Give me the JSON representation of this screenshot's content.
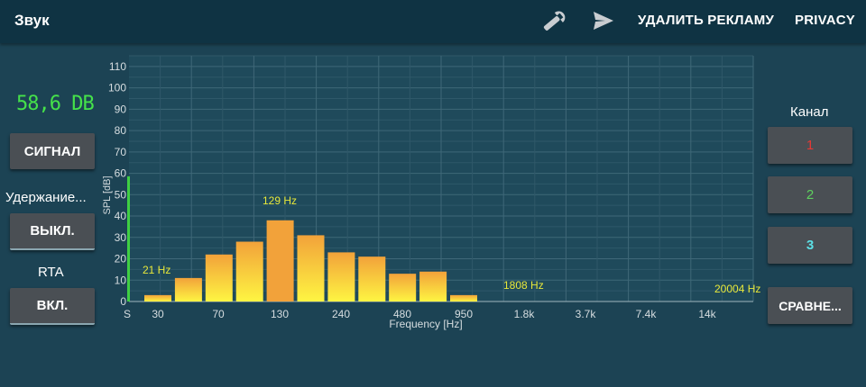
{
  "app": {
    "title": "Звук"
  },
  "toolbar": {
    "remove_ads": "УДАЛИТЬ РЕКЛАМУ",
    "privacy": "PRIVACY"
  },
  "left_panel": {
    "db_readout": "58,6 DB",
    "signal_button": "СИГНАЛ",
    "hold_label": "Удержание...",
    "hold_button": "ВЫКЛ.",
    "rta_label": "RTA",
    "rta_button": "ВКЛ."
  },
  "right_panel": {
    "channel_label": "Канал",
    "channels": [
      "1",
      "2",
      "3"
    ],
    "compare_button": "СРАВНЕ..."
  },
  "colors": {
    "background": "#1c4354",
    "topbar": "#0f3343",
    "accent_green": "#45e24a",
    "bar_top": "#f2a23a",
    "bar_bottom": "#fef542",
    "freq_label": "#e8e83a"
  },
  "chart_data": {
    "type": "bar",
    "ylabel": "SPL [dB]",
    "xlabel": "Frequency [Hz]",
    "ylim": [
      0,
      115
    ],
    "yticks": [
      0,
      10,
      20,
      30,
      40,
      50,
      60,
      70,
      80,
      90,
      100,
      110
    ],
    "xtick_labels": [
      "S",
      "30",
      "70",
      "130",
      "240",
      "480",
      "950",
      "1.8k",
      "3.7k",
      "7.4k",
      "14k"
    ],
    "bars": [
      3,
      11,
      22,
      28,
      38,
      31,
      23,
      21,
      13,
      14,
      3
    ],
    "peak_bar_index": 4,
    "level_meter": 58.6,
    "peak_labels": [
      "21 Hz",
      "129 Hz",
      "1808 Hz",
      "20004 Hz"
    ],
    "grid": true
  }
}
